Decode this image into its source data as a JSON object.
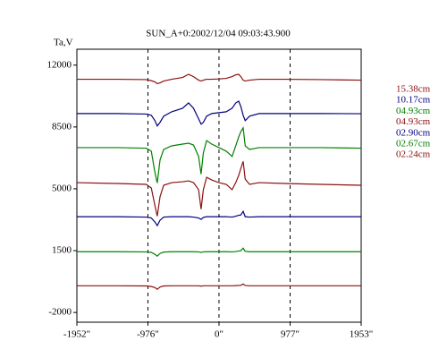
{
  "chart_data": {
    "type": "line",
    "title": "SUN_A+0:2002/12/04 09:03:43.900",
    "y_label": "Ta,V",
    "x": [
      -1952,
      -1400,
      -1000,
      -930,
      -880,
      -848,
      -810,
      -760,
      -650,
      -500,
      -418,
      -350,
      -280,
      -246,
      -215,
      -170,
      -100,
      0,
      100,
      180,
      230,
      270,
      300,
      332,
      360,
      420,
      550,
      900,
      1400,
      1953
    ],
    "series": [
      {
        "name": "15.38cm",
        "color": "#8b1010",
        "values": [
          11200,
          11200,
          11180,
          11120,
          11050,
          10950,
          11000,
          11100,
          11200,
          11300,
          11480,
          11350,
          11150,
          11100,
          11150,
          11200,
          11200,
          11220,
          11250,
          11350,
          11450,
          11480,
          11350,
          11150,
          11100,
          11150,
          11200,
          11200,
          11180,
          11150
        ]
      },
      {
        "name": "10.17cm",
        "color": "#000080",
        "values": [
          9260,
          9260,
          9230,
          9160,
          8860,
          8560,
          8760,
          9110,
          9360,
          9560,
          9860,
          9560,
          8960,
          8660,
          8760,
          9110,
          9260,
          9310,
          9360,
          9560,
          9860,
          9960,
          9660,
          9160,
          8860,
          9110,
          9260,
          9260,
          9260,
          9250
        ]
      },
      {
        "name": "04.93cm",
        "color": "#008000",
        "values": [
          7330,
          7330,
          7300,
          7130,
          5930,
          5330,
          6630,
          7230,
          7430,
          7530,
          7580,
          7480,
          6830,
          5830,
          7030,
          7730,
          7530,
          7330,
          7130,
          6830,
          7430,
          7930,
          8230,
          8450,
          7430,
          7230,
          7330,
          7330,
          7330,
          7300
        ]
      },
      {
        "name": "04.93cm",
        "color": "#8b1010",
        "values": [
          5350,
          5300,
          5250,
          5050,
          4050,
          3450,
          4550,
          5200,
          5350,
          5400,
          5450,
          5350,
          4950,
          3850,
          4950,
          5650,
          5500,
          5350,
          5250,
          4950,
          5350,
          5750,
          6150,
          6550,
          5550,
          5250,
          5350,
          5300,
          5250,
          5200
        ]
      },
      {
        "name": "02.90cm",
        "color": "#000080",
        "values": [
          3420,
          3420,
          3400,
          3350,
          3120,
          2920,
          3220,
          3400,
          3420,
          3420,
          3420,
          3400,
          3350,
          3270,
          3380,
          3420,
          3420,
          3420,
          3420,
          3400,
          3450,
          3500,
          3520,
          3720,
          3420,
          3400,
          3420,
          3420,
          3420,
          3420
        ]
      },
      {
        "name": "02.67cm",
        "color": "#008000",
        "values": [
          1440,
          1440,
          1430,
          1400,
          1290,
          1190,
          1340,
          1420,
          1440,
          1440,
          1440,
          1440,
          1430,
          1400,
          1430,
          1440,
          1440,
          1440,
          1440,
          1430,
          1450,
          1480,
          1500,
          1640,
          1460,
          1440,
          1440,
          1440,
          1440,
          1440
        ]
      },
      {
        "name": "02.24cm",
        "color": "#8b1010",
        "values": [
          -490,
          -490,
          -500,
          -530,
          -590,
          -690,
          -560,
          -500,
          -490,
          -490,
          -490,
          -490,
          -490,
          -510,
          -490,
          -490,
          -490,
          -490,
          -490,
          -490,
          -480,
          -470,
          -460,
          -390,
          -470,
          -490,
          -490,
          -490,
          -490,
          -490
        ]
      }
    ],
    "xlim": [
      -1952,
      1953
    ],
    "ylim": [
      -2550,
      12900
    ],
    "xticks": [
      {
        "value": -1952,
        "label": "-1952\""
      },
      {
        "value": -976,
        "label": "-976\""
      },
      {
        "value": 0,
        "label": "0\""
      },
      {
        "value": 977,
        "label": "977\""
      },
      {
        "value": 1953,
        "label": "1953\""
      }
    ],
    "yticks": [
      -2000,
      1500,
      5000,
      8500,
      12000
    ],
    "grid": "x-dashed",
    "legend": "right"
  }
}
